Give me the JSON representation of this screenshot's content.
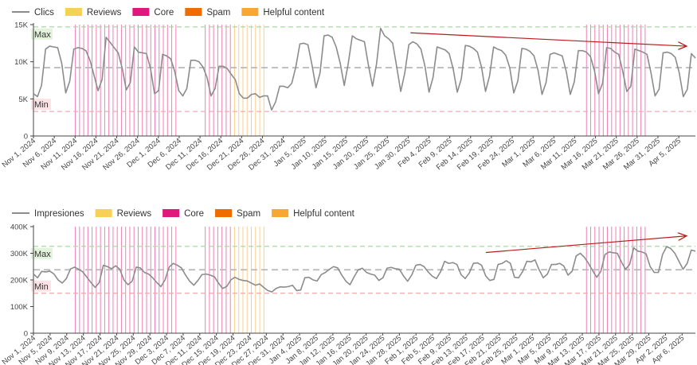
{
  "colors": {
    "line": "#8c8c8c",
    "reviews": "#f6d155",
    "core": "#e0187d",
    "spam": "#ef6c00",
    "helpful": "#f7a832",
    "max_line": "#9ed99a",
    "min_line": "#f2a7a7",
    "avg_line": "#b8b8b8",
    "max_badge": "#e3f3dc",
    "min_badge": "#fbe3e6",
    "trend": "#b71c1c",
    "axis": "#444444",
    "grid": "#e8e8e8"
  },
  "chart_data": [
    {
      "type": "line",
      "legend": [
        {
          "name": "Clics",
          "kind": "line",
          "color": "#8c8c8c"
        },
        {
          "name": "Reviews",
          "kind": "box",
          "color": "#f6d155"
        },
        {
          "name": "Core",
          "kind": "box",
          "color": "#e0187d"
        },
        {
          "name": "Spam",
          "kind": "box",
          "color": "#ef6c00"
        },
        {
          "name": "Helpful content",
          "kind": "box",
          "color": "#f7a832"
        }
      ],
      "series": [
        {
          "name": "Clics",
          "start": "2024-11-01",
          "end": "2025-04-08"
        }
      ],
      "x_tick_labels": [
        "Nov 1, 2024",
        "Nov 6, 2024",
        "Nov 11, 2024",
        "Nov 16, 2024",
        "Nov 21, 2024",
        "Nov 26, 2024",
        "Dec 1, 2024",
        "Dec 6, 2024",
        "Dec 11, 2024",
        "Dec 16, 2024",
        "Dec 21, 2024",
        "Dec 26, 2024",
        "Dec 31, 2024",
        "Jan 5, 2025",
        "Jan 10, 2025",
        "Jan 15, 2025",
        "Jan 20, 2025",
        "Jan 25, 2025",
        "Jan 30, 2025",
        "Feb 4, 2025",
        "Feb 9, 2025",
        "Feb 14, 2025",
        "Feb 19, 2025",
        "Feb 24, 2025",
        "Mar 1, 2025",
        "Mar 6, 2025",
        "Mar 11, 2025",
        "Mar 16, 2025",
        "Mar 21, 2025",
        "Mar 26, 2025",
        "Mar 31, 2025",
        "Apr 5, 2025"
      ],
      "y_ticks": [
        {
          "value": 0,
          "label": "0"
        },
        {
          "value": 5000,
          "label": "5K"
        },
        {
          "value": 10000,
          "label": "10K"
        },
        {
          "value": 15000,
          "label": "15K"
        }
      ],
      "ylim": [
        0,
        15000
      ],
      "values": [
        5700,
        5300,
        6800,
        11700,
        12100,
        12000,
        11900,
        9800,
        5800,
        7400,
        11700,
        11900,
        11800,
        11500,
        10200,
        8200,
        6100,
        7600,
        13300,
        12600,
        11900,
        11200,
        9100,
        6200,
        7200,
        12000,
        11300,
        11200,
        11100,
        9100,
        5700,
        6100,
        11000,
        10800,
        10400,
        8700,
        6100,
        5400,
        6400,
        10200,
        10200,
        10000,
        9300,
        7900,
        5400,
        6400,
        9400,
        9400,
        9100,
        8300,
        7600,
        5700,
        5100,
        5100,
        5600,
        5700,
        5200,
        5400,
        5400,
        3500,
        4600,
        6700,
        6700,
        6500,
        7100,
        9300,
        12400,
        12500,
        12300,
        9600,
        6500,
        8500,
        13500,
        13600,
        13300,
        12000,
        9800,
        6800,
        9800,
        13500,
        13100,
        12900,
        12700,
        9500,
        6700,
        9700,
        14500,
        13500,
        13100,
        12500,
        9300,
        6000,
        8500,
        12300,
        12700,
        12400,
        11700,
        9400,
        5900,
        7900,
        12000,
        11800,
        11600,
        11100,
        9000,
        5900,
        7700,
        12200,
        12100,
        11800,
        11300,
        9300,
        6000,
        8100,
        12000,
        11700,
        11500,
        10900,
        9200,
        5800,
        7400,
        11800,
        11700,
        11400,
        10800,
        8900,
        5600,
        7200,
        11000,
        11200,
        11000,
        10800,
        8700,
        5600,
        7300,
        11500,
        11500,
        11300,
        10700,
        8800,
        5700,
        7100,
        11900,
        11800,
        11300,
        11000,
        8700,
        6000,
        6700,
        11700,
        11500,
        11300,
        11000,
        8500,
        5400,
        6300,
        11200,
        11300,
        11100,
        10600,
        8500,
        5300,
        6300,
        11100,
        10500
      ],
      "reference_lines": {
        "max": 14700,
        "avg": 9200,
        "min": 3300,
        "max_label": "Max",
        "min_label": "Min"
      },
      "update_bands": [
        {
          "type": "core",
          "start": "2024-11-11",
          "end": "2024-12-05"
        },
        {
          "type": "core",
          "start": "2024-12-12",
          "end": "2024-12-18"
        },
        {
          "type": "helpful",
          "start": "2024-12-19",
          "end": "2024-12-26"
        },
        {
          "type": "core",
          "start": "2025-03-13",
          "end": "2025-03-27"
        }
      ],
      "trend_arrow": {
        "from": [
          "2025-01-30",
          13900
        ],
        "to": [
          "2025-04-08",
          12100
        ]
      }
    },
    {
      "type": "line",
      "legend": [
        {
          "name": "Impresiones",
          "kind": "line",
          "color": "#8c8c8c"
        },
        {
          "name": "Reviews",
          "kind": "box",
          "color": "#f6d155"
        },
        {
          "name": "Core",
          "kind": "box",
          "color": "#e0187d"
        },
        {
          "name": "Spam",
          "kind": "box",
          "color": "#ef6c00"
        },
        {
          "name": "Helpful content",
          "kind": "box",
          "color": "#f7a832"
        }
      ],
      "series": [
        {
          "name": "Impresiones",
          "start": "2024-11-01",
          "end": "2025-04-08"
        }
      ],
      "x_tick_labels": [
        "Nov 1, 2024",
        "Nov 5, 2024",
        "Nov 9, 2024",
        "Nov 13, 2024",
        "Nov 17, 2024",
        "Nov 21, 2024",
        "Nov 25, 2024",
        "Nov 29, 2024",
        "Dec 3, 2024",
        "Dec 7, 2024",
        "Dec 11, 2024",
        "Dec 15, 2024",
        "Dec 19, 2024",
        "Dec 23, 2024",
        "Dec 27, 2024",
        "Dec 31, 2024",
        "Jan 4, 2025",
        "Jan 8, 2025",
        "Jan 12, 2025",
        "Jan 16, 2025",
        "Jan 20, 2025",
        "Jan 24, 2025",
        "Jan 28, 2025",
        "Feb 1, 2025",
        "Feb 5, 2025",
        "Feb 9, 2025",
        "Feb 13, 2025",
        "Feb 17, 2025",
        "Feb 21, 2025",
        "Feb 25, 2025",
        "Mar 1, 2025",
        "Mar 5, 2025",
        "Mar 9, 2025",
        "Mar 13, 2025",
        "Mar 17, 2025",
        "Mar 21, 2025",
        "Mar 25, 2025",
        "Mar 29, 2025",
        "Apr 2, 2025",
        "Apr 6, 2025"
      ],
      "y_ticks": [
        {
          "value": 0,
          "label": "0"
        },
        {
          "value": 100000,
          "label": "100K"
        },
        {
          "value": 200000,
          "label": "200K"
        },
        {
          "value": 300000,
          "label": "300K"
        },
        {
          "value": 400000,
          "label": "400K"
        }
      ],
      "ylim": [
        0,
        400000
      ],
      "values": [
        222000,
        208000,
        232000,
        230000,
        233000,
        222000,
        200000,
        188000,
        205000,
        241000,
        248000,
        240000,
        230000,
        210000,
        190000,
        172000,
        190000,
        255000,
        250000,
        242000,
        253000,
        240000,
        200000,
        182000,
        195000,
        248000,
        245000,
        228000,
        222000,
        208000,
        190000,
        175000,
        200000,
        248000,
        262000,
        255000,
        245000,
        218000,
        195000,
        180000,
        198000,
        220000,
        222000,
        218000,
        212000,
        188000,
        168000,
        175000,
        200000,
        210000,
        202000,
        198000,
        196000,
        188000,
        180000,
        185000,
        172000,
        160000,
        155000,
        168000,
        174000,
        173000,
        175000,
        180000,
        160000,
        162000,
        208000,
        210000,
        200000,
        196000,
        220000,
        228000,
        240000,
        250000,
        245000,
        218000,
        195000,
        182000,
        212000,
        238000,
        244000,
        228000,
        222000,
        218000,
        198000,
        208000,
        244000,
        247000,
        242000,
        240000,
        215000,
        195000,
        218000,
        255000,
        258000,
        250000,
        230000,
        214000,
        205000,
        230000,
        270000,
        262000,
        265000,
        258000,
        220000,
        205000,
        226000,
        262000,
        264000,
        255000,
        215000,
        198000,
        202000,
        258000,
        262000,
        272000,
        262000,
        210000,
        208000,
        232000,
        270000,
        268000,
        275000,
        238000,
        208000,
        222000,
        258000,
        258000,
        262000,
        252000,
        218000,
        232000,
        290000,
        300000,
        285000,
        262000,
        235000,
        210000,
        232000,
        295000,
        305000,
        302000,
        300000,
        268000,
        240000,
        258000,
        320000,
        308000,
        305000,
        298000,
        250000,
        228000,
        228000,
        295000,
        325000,
        318000,
        300000,
        270000,
        240000,
        262000,
        312000,
        308000
      ],
      "reference_lines": {
        "max": 326000,
        "avg": 238000,
        "min": 150000,
        "max_label": "Max",
        "min_label": "Min"
      },
      "update_bands": [
        {
          "type": "core",
          "start": "2024-11-11",
          "end": "2024-12-05"
        },
        {
          "type": "core",
          "start": "2024-12-12",
          "end": "2024-12-18"
        },
        {
          "type": "helpful",
          "start": "2024-12-19",
          "end": "2024-12-26"
        },
        {
          "type": "core",
          "start": "2025-03-13",
          "end": "2025-03-27"
        }
      ],
      "trend_arrow": {
        "from": [
          "2025-02-17",
          303000
        ],
        "to": [
          "2025-04-08",
          365000
        ]
      }
    }
  ]
}
